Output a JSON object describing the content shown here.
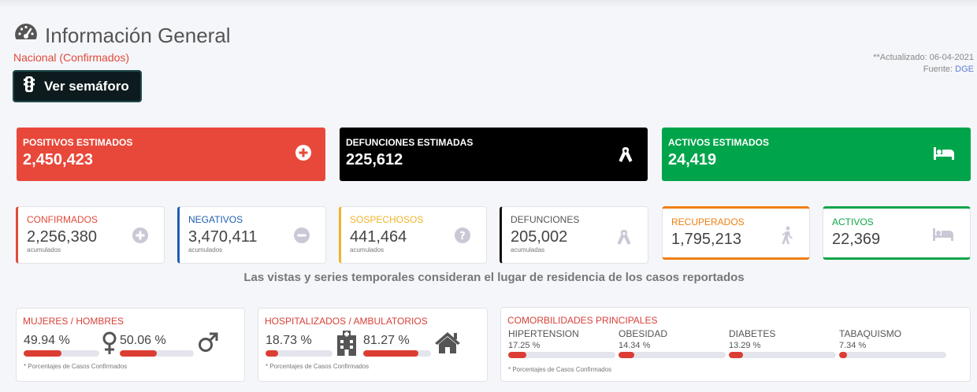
{
  "header": {
    "title": "Información General",
    "subtitle": "Nacional (Confirmados)",
    "semaforo_label": "Ver semáforo",
    "updated": "**Actualizado: 06-04-2021",
    "source_prefix": "Fuente: ",
    "source_link": "DGE"
  },
  "big_cards": [
    {
      "label": "POSITIVOS ESTIMADOS",
      "value": "2,450,423",
      "icon": "plus-circle-icon",
      "color": "#e8483a"
    },
    {
      "label": "DEFUNCIONES ESTIMADAS",
      "value": "225,612",
      "icon": "ribbon-icon",
      "color": "#000000"
    },
    {
      "label": "ACTIVOS ESTIMADOS",
      "value": "24,419",
      "icon": "bed-icon",
      "color": "#00a54b"
    }
  ],
  "small_cards": [
    {
      "label": "CONFIRMADOS",
      "value": "2,256,380",
      "sub": "acumulados",
      "icon": "plus-circle-icon",
      "color": "#e04a3a"
    },
    {
      "label": "NEGATIVOS",
      "value": "3,470,411",
      "sub": "acumulados",
      "icon": "minus-circle-icon",
      "color": "#1f5fb0"
    },
    {
      "label": "SOSPECHOSOS",
      "value": "441,464",
      "sub": "acumulados",
      "icon": "question-circle-icon",
      "color": "#f0b429"
    },
    {
      "label": "DEFUNCIONES",
      "value": "205,002",
      "sub": "acumuladas",
      "icon": "ribbon-icon",
      "color": "#111111"
    },
    {
      "label": "RECUPERADOS",
      "value": "1,795,213",
      "icon": "walking-icon",
      "color": "#f07f12"
    },
    {
      "label": "ACTIVOS",
      "value": "22,369",
      "icon": "bed-icon",
      "color": "#0ea54a"
    }
  ],
  "note": "Las vistas y series temporales consideran el lugar de residencia de los casos reportados",
  "gender": {
    "title": "MUJERES / HOMBRES",
    "women_pct": "49.94 %",
    "women_value": 0.4994,
    "men_pct": "50.06 %",
    "men_value": 0.5006,
    "foot": "* Porcentajes de Casos Confirmados"
  },
  "hospital": {
    "title": "HOSPITALIZADOS / AMBULATORIOS",
    "hosp_pct": "18.73 %",
    "hosp_value": 0.1873,
    "amb_pct": "81.27 %",
    "amb_value": 0.8127,
    "foot": "* Porcentajes de Casos Confirmados"
  },
  "comorbidities": {
    "title": "COMORBILIDADES PRINCIPALES",
    "items": [
      {
        "label": "HIPERTENSION",
        "pct": "17.25 %",
        "value": 0.1725
      },
      {
        "label": "OBESIDAD",
        "pct": "14.34 %",
        "value": 0.1434
      },
      {
        "label": "DIABETES",
        "pct": "13.29 %",
        "value": 0.1329
      },
      {
        "label": "TABAQUISMO",
        "pct": "7.34 %",
        "value": 0.0734
      }
    ],
    "foot": "* Porcentajes de Casos Confirmados"
  }
}
